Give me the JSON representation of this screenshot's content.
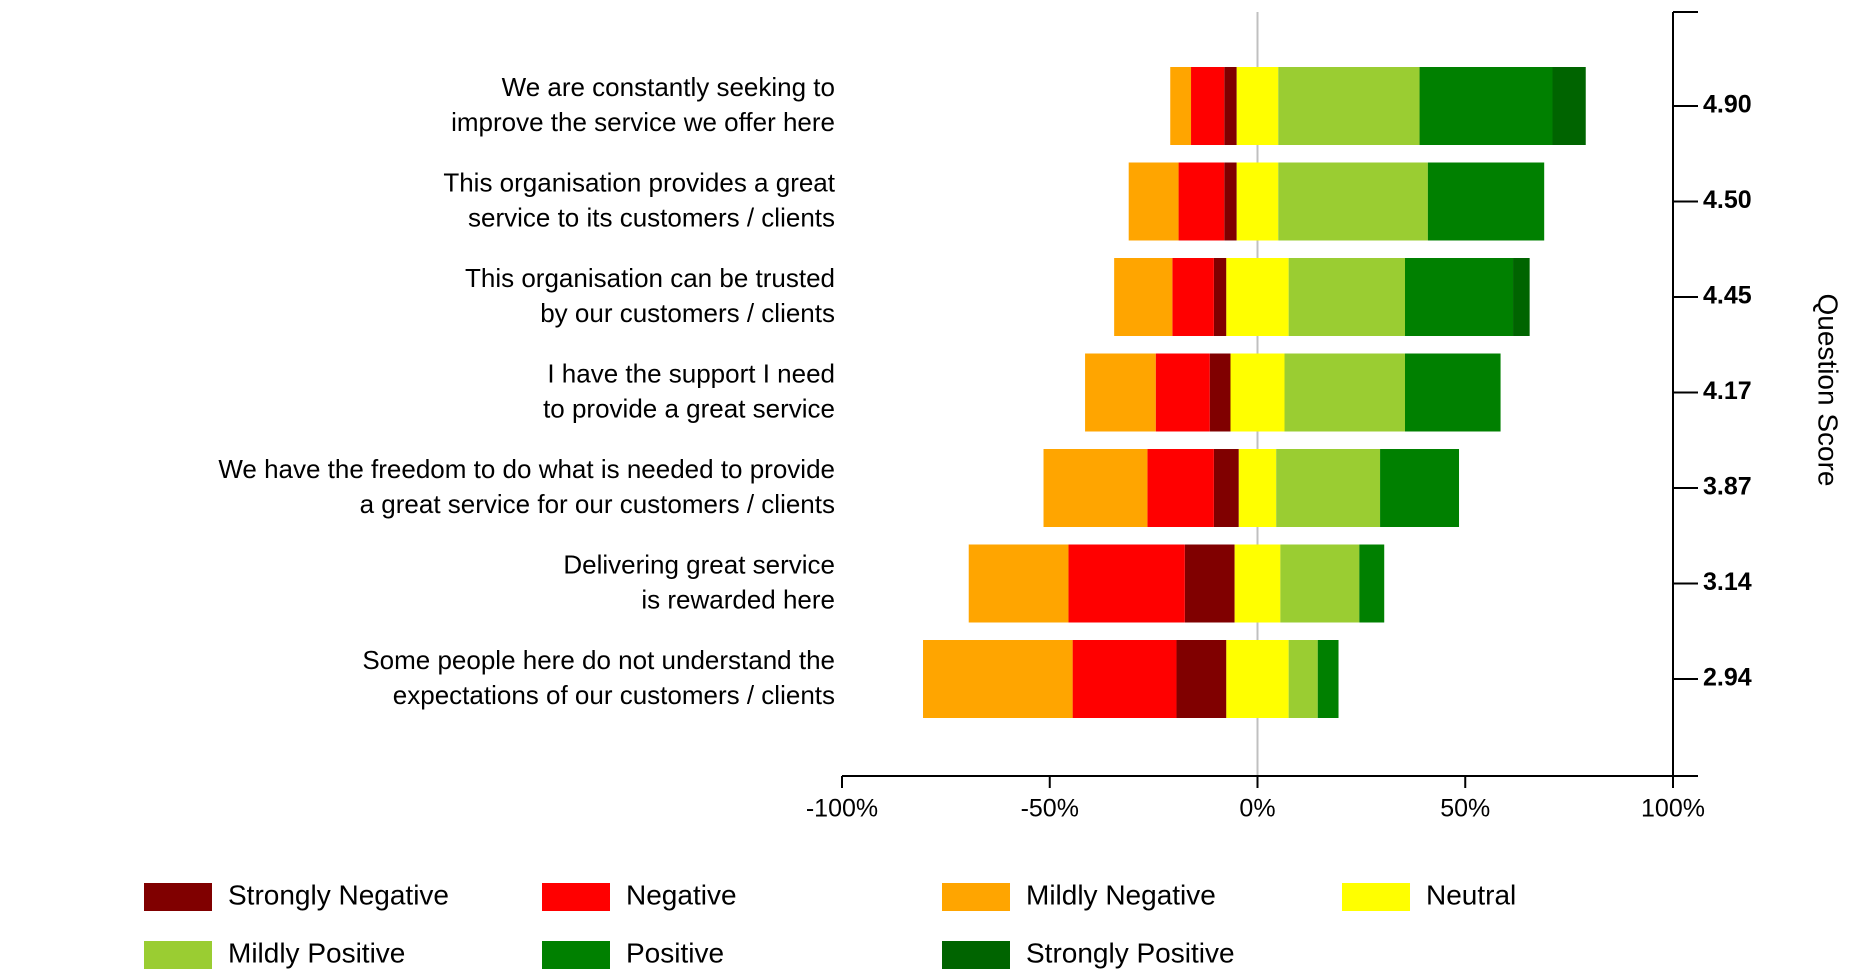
{
  "chart_data": {
    "type": "diverging_bar",
    "categories": [
      [
        "We are constantly seeking to",
        "improve the service we offer here"
      ],
      [
        "This organisation provides a great",
        "service to its customers / clients"
      ],
      [
        "This organisation can be trusted",
        "by our customers / clients"
      ],
      [
        "I have the support I need",
        "to provide a great service"
      ],
      [
        "We have the freedom to do what is needed to provide",
        "a great service for our customers / clients"
      ],
      [
        "Delivering great service",
        "is rewarded here"
      ],
      [
        "Some people here do not understand the",
        "expectations of our customers / clients"
      ]
    ],
    "series": [
      {
        "name": "Strongly Negative",
        "color": "#800000",
        "side": "negative",
        "values": [
          3,
          3,
          3,
          5,
          6,
          12,
          12
        ]
      },
      {
        "name": "Negative",
        "color": "#ff0000",
        "side": "negative",
        "values": [
          8,
          11,
          10,
          13,
          16,
          28,
          25
        ]
      },
      {
        "name": "Mildly Negative",
        "color": "#ffa500",
        "side": "negative",
        "values": [
          5,
          12,
          14,
          17,
          25,
          24,
          36
        ]
      },
      {
        "name": "Neutral",
        "color": "#ffff00",
        "side": "neutral",
        "values": [
          10,
          10,
          15,
          13,
          9,
          11,
          15
        ]
      },
      {
        "name": "Mildly Positive",
        "color": "#9acd32",
        "side": "positive",
        "values": [
          34,
          36,
          28,
          29,
          25,
          19,
          7
        ]
      },
      {
        "name": "Positive",
        "color": "#008000",
        "side": "positive",
        "values": [
          32,
          28,
          26,
          23,
          19,
          6,
          5
        ]
      },
      {
        "name": "Strongly Positive",
        "color": "#006400",
        "side": "positive",
        "values": [
          8,
          0,
          4,
          0,
          0,
          0,
          0
        ]
      }
    ],
    "xlim": [
      -100,
      100
    ],
    "xticks": [
      {
        "value": -100,
        "label": "-100%"
      },
      {
        "value": -50,
        "label": "-50%"
      },
      {
        "value": 0,
        "label": "0%"
      },
      {
        "value": 50,
        "label": "50%"
      },
      {
        "value": 100,
        "label": "100%"
      }
    ],
    "y2_label": "Question Score",
    "y2_labels": [
      "4.90",
      "4.50",
      "4.45",
      "4.17",
      "3.87",
      "3.14",
      "2.94"
    ]
  }
}
